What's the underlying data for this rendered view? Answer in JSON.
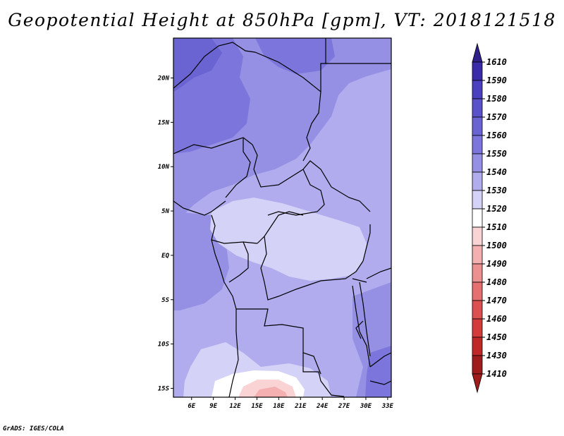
{
  "title": "Geopotential Height at 850hPa [gpm], VT: 2018121518",
  "credit": "GrADS: IGES/COLA",
  "map": {
    "lat_labels": [
      "20N",
      "15N",
      "10N",
      "5N",
      "EQ",
      "5S",
      "10S",
      "15S"
    ],
    "lat_values": [
      20,
      15,
      10,
      5,
      0,
      -5,
      -10,
      -15
    ],
    "lon_labels": [
      "6E",
      "9E",
      "12E",
      "15E",
      "18E",
      "21E",
      "24E",
      "27E",
      "30E",
      "33E"
    ],
    "lon_values": [
      6,
      9,
      12,
      15,
      18,
      21,
      24,
      27,
      30,
      33
    ],
    "lon_range": [
      3.5,
      33.5
    ],
    "lat_range": [
      -16,
      24.5
    ]
  },
  "colorbar": {
    "levels": [
      "1610",
      "1590",
      "1580",
      "1570",
      "1560",
      "1550",
      "1540",
      "1530",
      "1520",
      "1510",
      "1500",
      "1490",
      "1480",
      "1470",
      "1460",
      "1450",
      "1430",
      "1410"
    ],
    "colors": [
      "#2f208a",
      "#3a2ca8",
      "#4a3fbe",
      "#5a52c8",
      "#6a63d2",
      "#7c76dc",
      "#9590e4",
      "#b0acee",
      "#d4d2f6",
      "#ffffff",
      "#fad4d4",
      "#f4b0b0",
      "#ec9090",
      "#e47070",
      "#dc5050",
      "#d43c3c",
      "#c02828",
      "#a01c1c"
    ]
  }
}
